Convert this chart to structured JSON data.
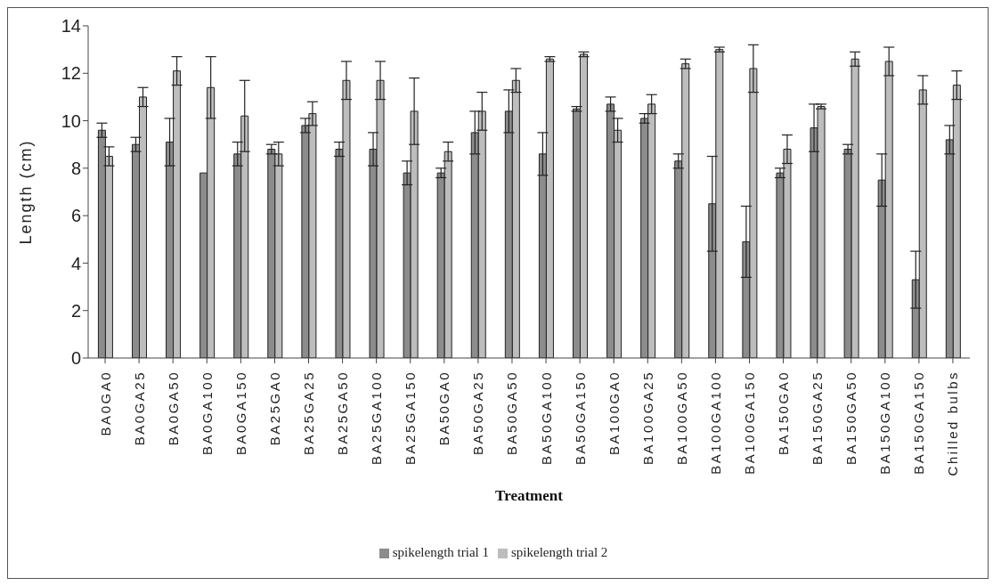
{
  "chart_data": {
    "type": "bar",
    "xlabel": "Treatment",
    "ylabel": "Length (cm)",
    "categories": [
      "BA0GA0",
      "BA0GA25",
      "BA0GA50",
      "BA0GA100",
      "BA0GA150",
      "BA25GA0",
      "BA25GA25",
      "BA25GA50",
      "BA25GA100",
      "BA25GA150",
      "BA50GA0",
      "BA50GA25",
      "BA50GA50",
      "BA50GA100",
      "BA50GA150",
      "BA100GA0",
      "BA100GA25",
      "BA100GA50",
      "BA100GA100",
      "BA100GA150",
      "BA150GA0",
      "BA150GA25",
      "BA150GA50",
      "BA150GA100",
      "BA150GA150",
      "Chilled bulbs"
    ],
    "series": [
      {
        "name": "spikelength trial 1",
        "color": "#8c8c8c",
        "values": [
          9.6,
          9.0,
          9.1,
          7.8,
          8.6,
          8.8,
          9.8,
          8.8,
          8.8,
          7.8,
          7.8,
          9.5,
          10.4,
          8.6,
          10.5,
          10.7,
          10.1,
          8.3,
          6.5,
          4.9,
          7.8,
          9.7,
          8.8,
          7.5,
          3.3,
          9.2
        ],
        "errors": [
          0.3,
          0.3,
          1.0,
          null,
          0.5,
          0.2,
          0.3,
          0.3,
          0.7,
          0.5,
          0.2,
          0.9,
          0.9,
          0.9,
          0.1,
          0.3,
          0.2,
          0.3,
          2.0,
          1.5,
          0.2,
          1.0,
          0.2,
          1.1,
          1.2,
          0.6
        ]
      },
      {
        "name": "spikelength trial 2",
        "color": "#bdbdbd",
        "values": [
          8.5,
          11.0,
          12.1,
          11.4,
          10.2,
          8.6,
          10.3,
          11.7,
          11.7,
          10.4,
          8.7,
          10.4,
          11.7,
          12.6,
          12.8,
          9.6,
          10.7,
          12.4,
          13.0,
          12.2,
          8.8,
          10.6,
          12.6,
          12.5,
          11.3,
          11.5
        ],
        "errors": [
          0.4,
          0.4,
          0.6,
          1.3,
          1.5,
          0.5,
          0.5,
          0.8,
          0.8,
          1.4,
          0.4,
          0.8,
          0.5,
          0.1,
          0.1,
          0.5,
          0.4,
          0.2,
          0.1,
          1.0,
          0.6,
          0.1,
          0.3,
          0.6,
          0.6,
          0.6
        ]
      }
    ],
    "ylim": [
      0,
      14
    ],
    "yticks": [
      0,
      2,
      4,
      6,
      8,
      10,
      12,
      14
    ],
    "grid": false,
    "legend": "bottom"
  }
}
